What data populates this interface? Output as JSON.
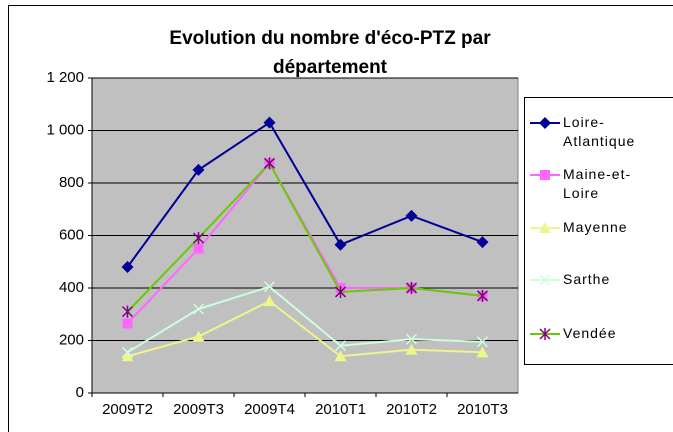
{
  "chart_data": {
    "type": "line",
    "title": "Evolution du nombre d'éco-PTZ par département",
    "categories": [
      "2009T2",
      "2009T3",
      "2009T4",
      "2010T1",
      "2010T2",
      "2010T3"
    ],
    "series": [
      {
        "name": "Loire-Atlantique",
        "color": "#000099",
        "marker": "diamond",
        "values": [
          480,
          850,
          1030,
          565,
          675,
          575
        ]
      },
      {
        "name": "Maine-et-Loire",
        "color": "#ff66ff",
        "marker": "square",
        "values": [
          265,
          550,
          875,
          400,
          400,
          370
        ]
      },
      {
        "name": "Mayenne",
        "color": "#eef58a",
        "marker": "triangle",
        "values": [
          140,
          215,
          350,
          140,
          165,
          155
        ]
      },
      {
        "name": "Sarthe",
        "color": "#ccffdd",
        "marker": "x",
        "values": [
          155,
          320,
          405,
          180,
          205,
          195
        ]
      },
      {
        "name": "Vendée",
        "color": "#66cc00",
        "marker": "asterisk",
        "marker_color": "#800080",
        "values": [
          310,
          590,
          875,
          385,
          400,
          370
        ]
      }
    ],
    "ylim": [
      0,
      1200
    ],
    "yticks": [
      0,
      200,
      400,
      600,
      800,
      {
        "value": 1000,
        "label": "1 000"
      },
      {
        "value": 1200,
        "label": "1 200"
      }
    ],
    "grid": true,
    "legend": "right"
  }
}
